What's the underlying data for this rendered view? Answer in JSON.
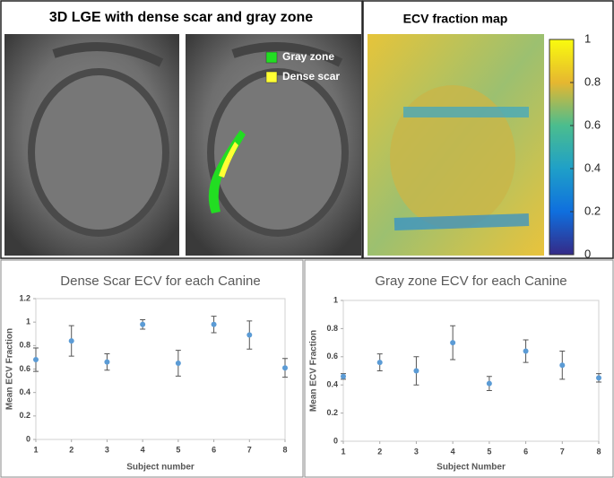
{
  "panels": {
    "lge": {
      "title": "3D LGE with dense scar and gray zone",
      "legend": [
        {
          "name": "Gray zone",
          "color": "#22dd22"
        },
        {
          "name": "Dense scar",
          "color": "#ffff33"
        }
      ]
    },
    "ecv": {
      "title": "ECV fraction map",
      "colorbar": {
        "lim": [
          0,
          1
        ],
        "ticks": [
          0,
          0.2,
          0.4,
          0.6,
          0.8,
          1
        ]
      }
    }
  },
  "chart_data": [
    {
      "type": "scatter",
      "title": "Dense Scar ECV for each Canine",
      "x_label": "Subject number",
      "y_label": "Mean ECV Fraction",
      "color": "#5b9bd5",
      "x": [
        1,
        2,
        3,
        4,
        5,
        6,
        7,
        8
      ],
      "values": [
        0.68,
        0.84,
        0.66,
        0.98,
        0.65,
        0.98,
        0.89,
        0.61
      ],
      "errors": [
        0.1,
        0.13,
        0.07,
        0.04,
        0.11,
        0.07,
        0.12,
        0.08
      ],
      "xlim": [
        1,
        8
      ],
      "xticks": [
        1,
        2,
        3,
        4,
        5,
        6,
        7,
        8
      ],
      "ylim": [
        0,
        1.2
      ],
      "yticks": [
        0,
        0.2,
        0.4,
        0.6,
        0.8,
        1,
        1.2
      ]
    },
    {
      "type": "scatter",
      "title": "Gray zone ECV for each Canine",
      "x_label": "Subject Number",
      "y_label": "Mean ECV Fraction",
      "color": "#5b9bd5",
      "x": [
        1,
        2,
        3,
        4,
        5,
        6,
        7,
        8
      ],
      "values": [
        0.46,
        0.56,
        0.5,
        0.7,
        0.41,
        0.64,
        0.54,
        0.45
      ],
      "errors": [
        0.02,
        0.06,
        0.1,
        0.12,
        0.05,
        0.08,
        0.1,
        0.03
      ],
      "xlim": [
        1,
        8
      ],
      "xticks": [
        1,
        2,
        3,
        4,
        5,
        6,
        7,
        8
      ],
      "ylim": [
        0,
        1
      ],
      "yticks": [
        0,
        0.2,
        0.4,
        0.6,
        0.8,
        1
      ]
    }
  ]
}
